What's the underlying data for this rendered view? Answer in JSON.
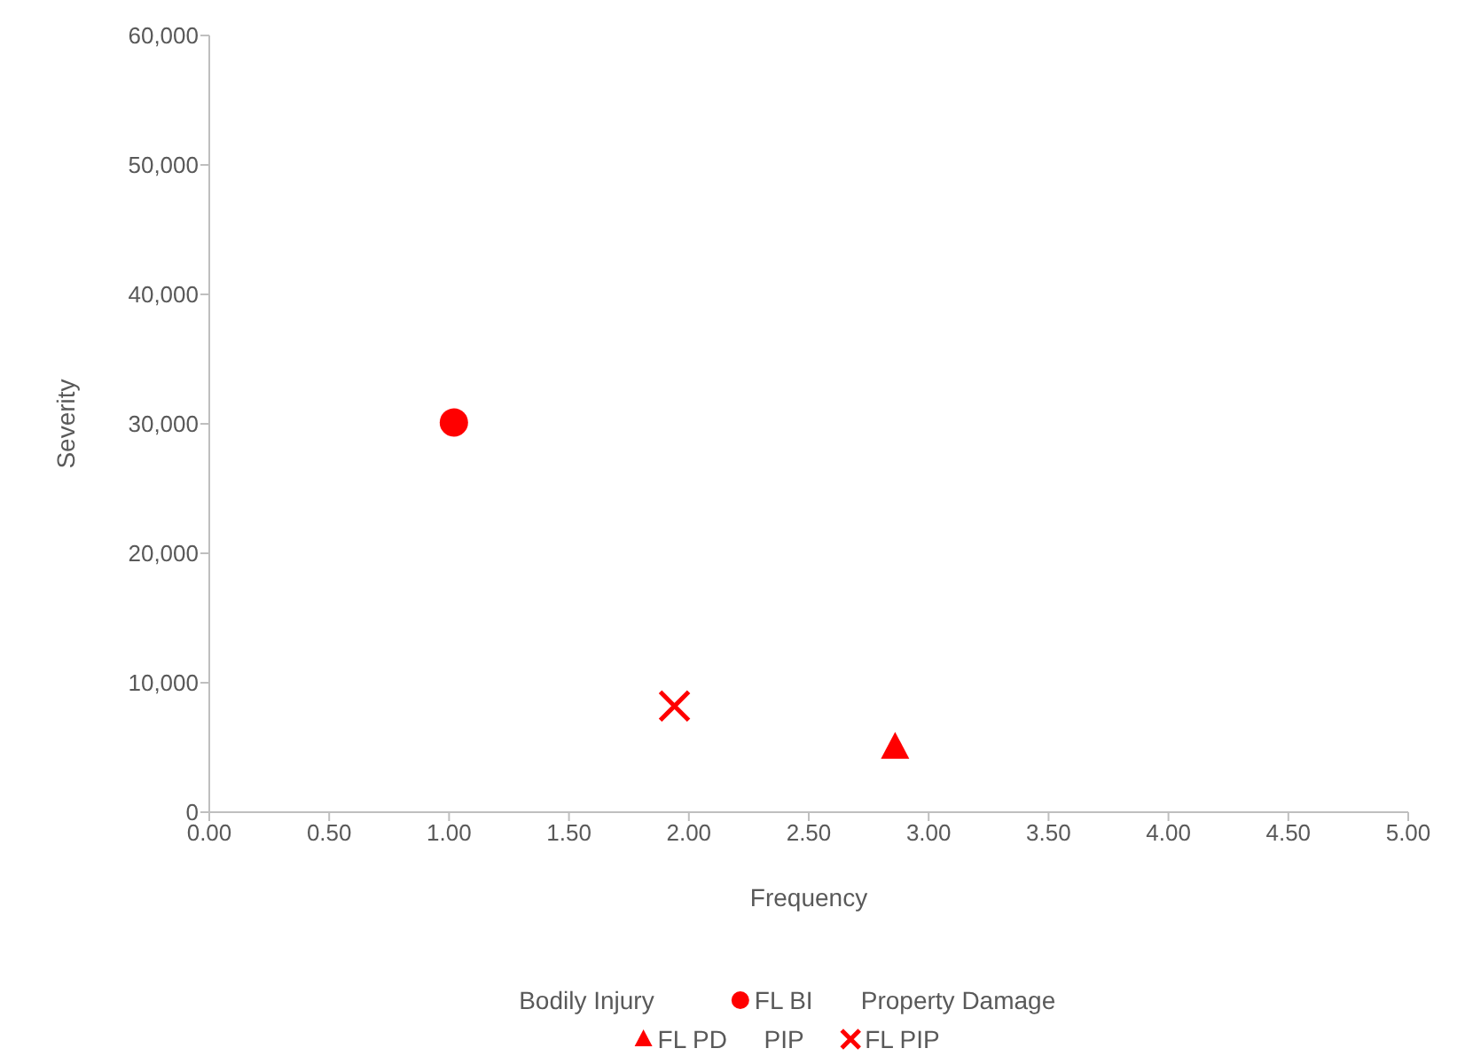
{
  "chart_data": {
    "type": "scatter",
    "xlabel": "Frequency",
    "ylabel": "Severity",
    "xlim": [
      0,
      5
    ],
    "ylim": [
      0,
      60000
    ],
    "xticks": [
      {
        "value": 0,
        "label": "0.00"
      },
      {
        "value": 0.5,
        "label": "0.50"
      },
      {
        "value": 1,
        "label": "1.00"
      },
      {
        "value": 1.5,
        "label": "1.50"
      },
      {
        "value": 2,
        "label": "2.00"
      },
      {
        "value": 2.5,
        "label": "2.50"
      },
      {
        "value": 3,
        "label": "3.00"
      },
      {
        "value": 3.5,
        "label": "3.50"
      },
      {
        "value": 4,
        "label": "4.00"
      },
      {
        "value": 4.5,
        "label": "4.50"
      },
      {
        "value": 5,
        "label": "5.00"
      }
    ],
    "yticks": [
      {
        "value": 0,
        "label": "0"
      },
      {
        "value": 10000,
        "label": "10,000"
      },
      {
        "value": 20000,
        "label": "20,000"
      },
      {
        "value": 30000,
        "label": "30,000"
      },
      {
        "value": 40000,
        "label": "40,000"
      },
      {
        "value": 50000,
        "label": "50,000"
      },
      {
        "value": 60000,
        "label": "60,000"
      }
    ],
    "grid": false,
    "legend": "bottom",
    "series": [
      {
        "name": "Bodily Injury",
        "marker": "none"
      },
      {
        "name": "FL BI",
        "color": "#ff0000",
        "marker": "circle",
        "x": [
          1.02
        ],
        "values": [
          30100
        ]
      },
      {
        "name": "Property Damage",
        "marker": "none"
      },
      {
        "name": "FL PD",
        "color": "#ff0000",
        "marker": "triangle",
        "x": [
          2.86
        ],
        "values": [
          5000
        ]
      },
      {
        "name": "PIP",
        "marker": "none"
      },
      {
        "name": "FL PIP",
        "color": "#ff0000",
        "marker": "cross",
        "x": [
          1.94
        ],
        "values": [
          8200
        ]
      }
    ]
  }
}
